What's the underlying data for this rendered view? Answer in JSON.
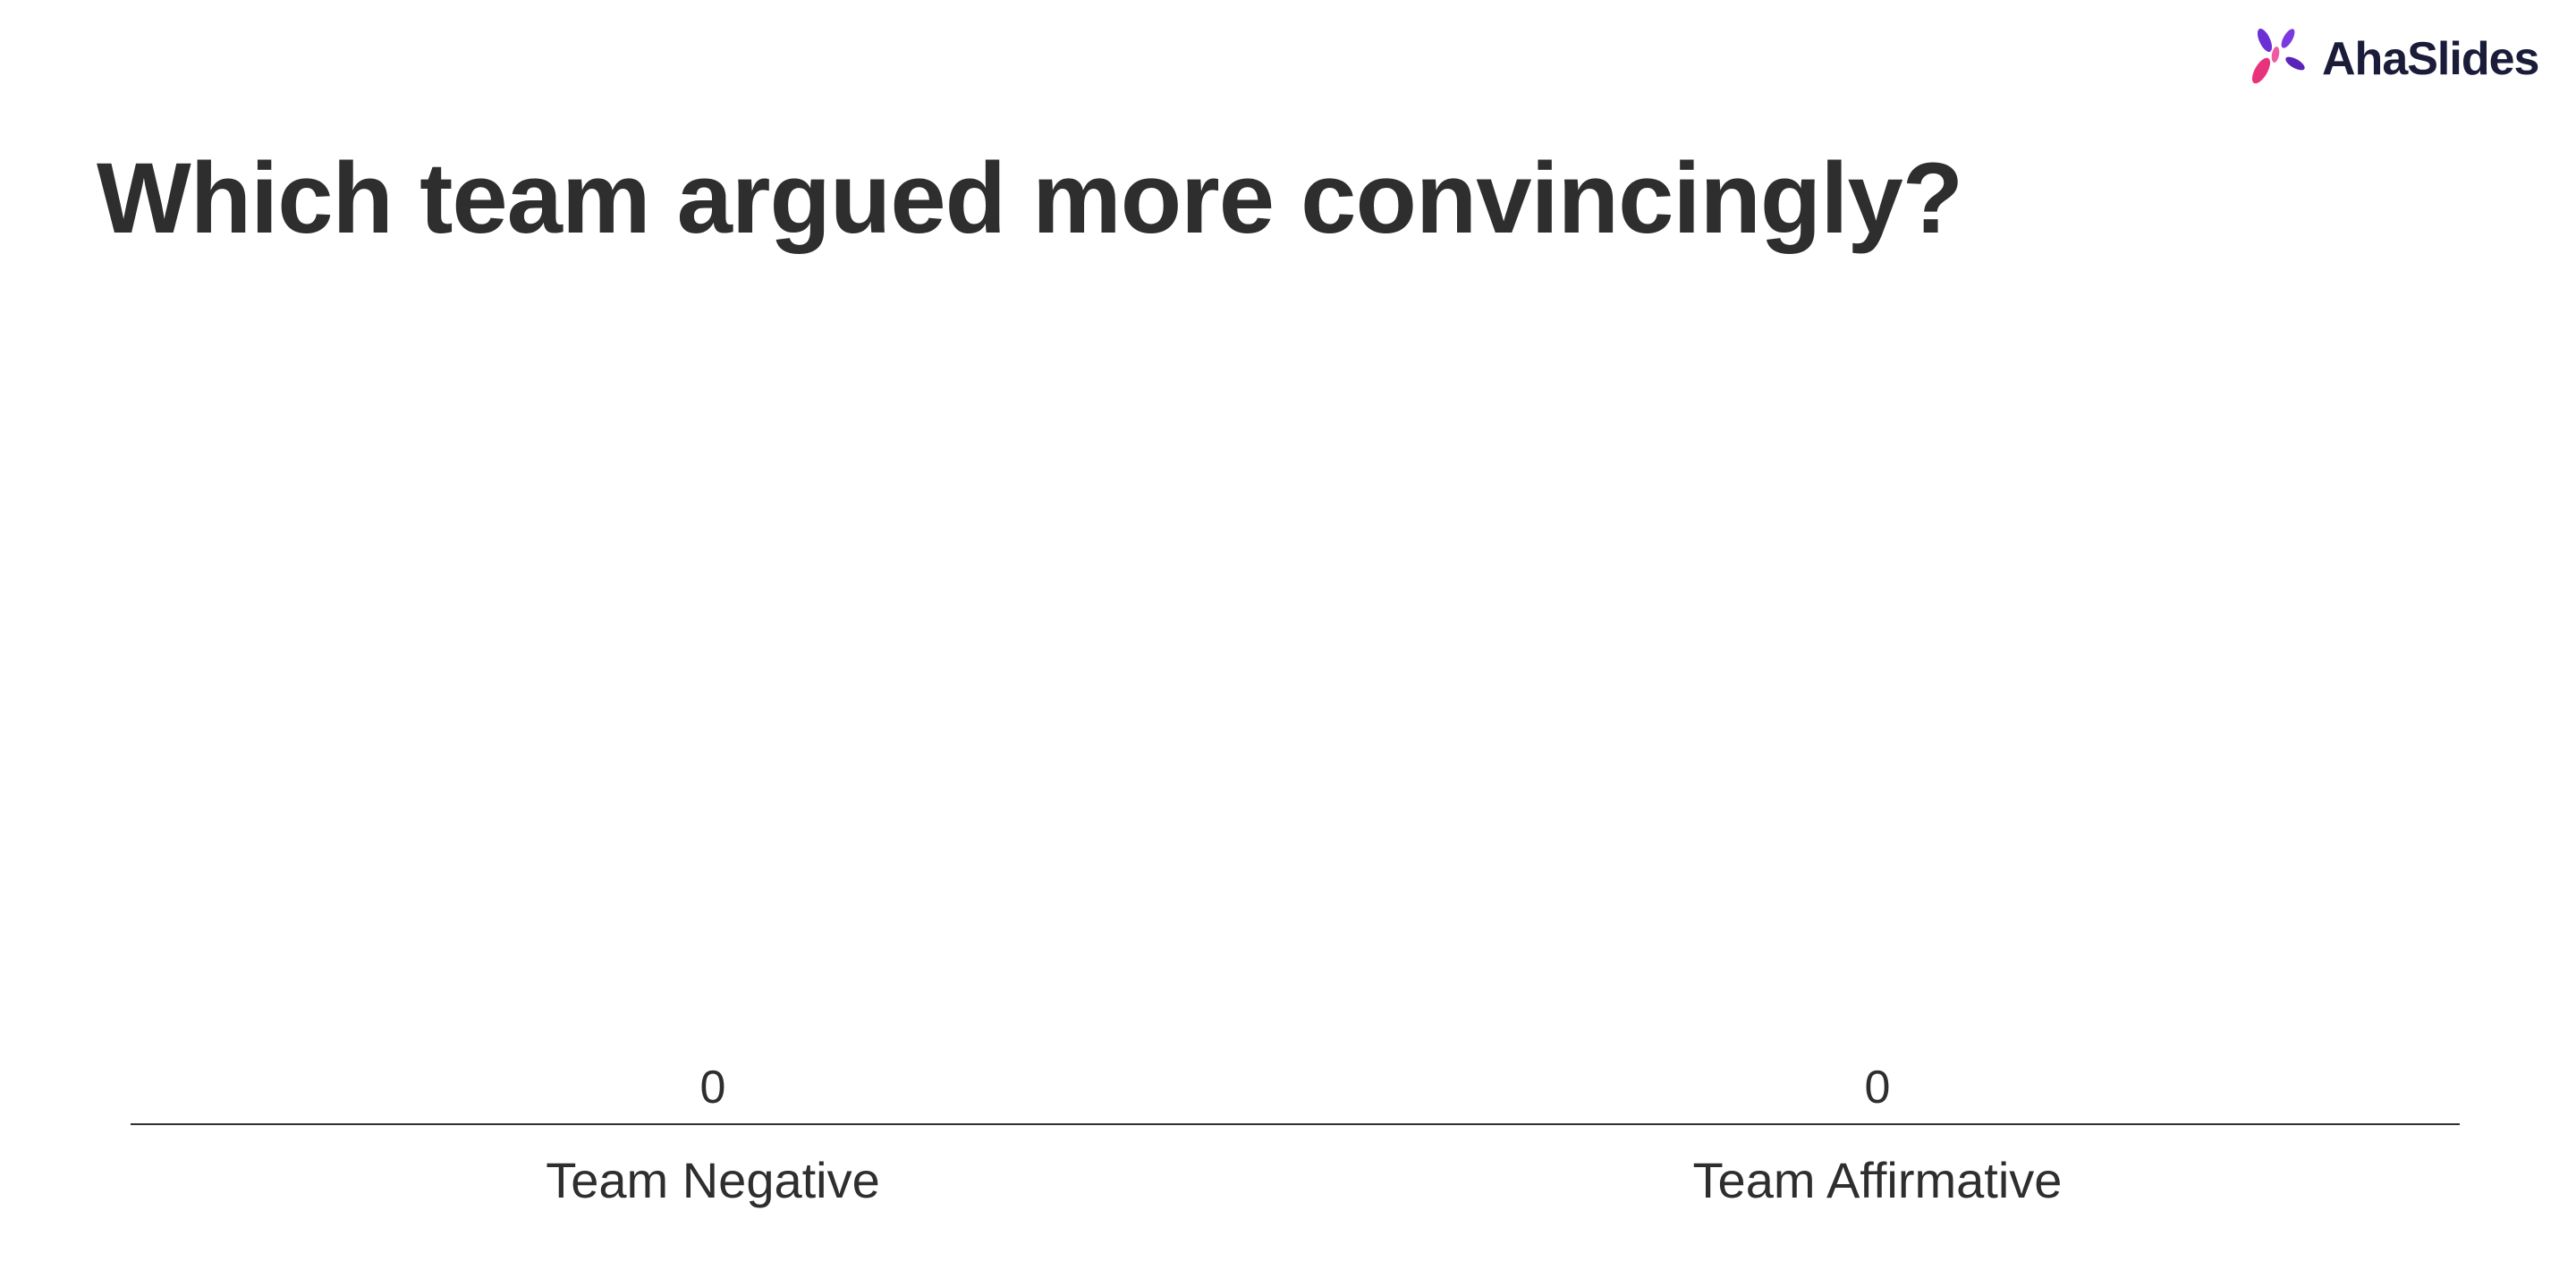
{
  "brand": {
    "name": "AhaSlides",
    "icon": "ahaslides-logo-icon",
    "colors": [
      "#6b2fd6",
      "#e8327b",
      "#f05aa0"
    ]
  },
  "slide": {
    "title": "Which team argued more convincingly?"
  },
  "chart_data": {
    "type": "bar",
    "categories": [
      "Team Negative",
      "Team Affirmative"
    ],
    "values": [
      0,
      0
    ],
    "data_labels": [
      "0",
      "0"
    ],
    "ylim": [
      0,
      1
    ],
    "grid": false,
    "axis_color": "#2e2e2e"
  }
}
